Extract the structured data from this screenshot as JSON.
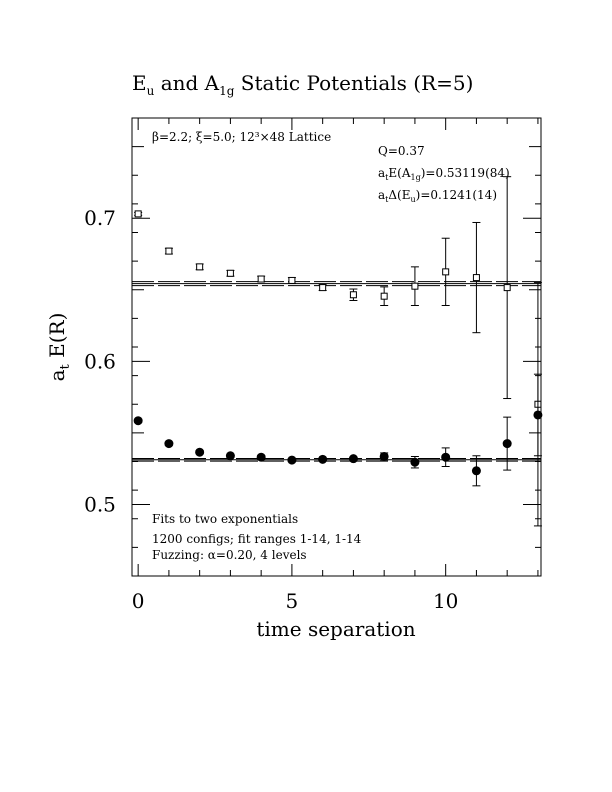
{
  "chart_data": {
    "type": "scatter",
    "title": {
      "pre": "E",
      "pre_sub": "u",
      "mid": " and A",
      "mid_sub": "1g",
      "post": " Static Potentials (R=5)"
    },
    "xlabel": "time separation",
    "ylabel": {
      "pre": "a",
      "sub": "t",
      "post": " E(R)"
    },
    "xlim": [
      -0.2,
      13.1
    ],
    "ylim": [
      0.45,
      0.77
    ],
    "x_ticks": [
      0,
      5,
      10
    ],
    "y_ticks": [
      0.5,
      0.6,
      0.7
    ],
    "x_tick_labels": [
      "0",
      "5",
      "10"
    ],
    "y_tick_labels": [
      "0.5",
      "0.6",
      "0.7"
    ],
    "grid": false,
    "series": [
      {
        "marker": "open-square",
        "points": [
          {
            "x": 0,
            "y": 0.703,
            "err": 0.001
          },
          {
            "x": 1,
            "y": 0.677,
            "err": 0.002
          },
          {
            "x": 2,
            "y": 0.666,
            "err": 0.002
          },
          {
            "x": 3,
            "y": 0.6615,
            "err": 0.002
          },
          {
            "x": 4,
            "y": 0.6575,
            "err": 0.002
          },
          {
            "x": 5,
            "y": 0.6565,
            "err": 0.002
          },
          {
            "x": 6,
            "y": 0.6515,
            "err": 0.002
          },
          {
            "x": 7,
            "y": 0.6465,
            "err": 0.004
          },
          {
            "x": 8,
            "y": 0.6455,
            "err": 0.0065
          },
          {
            "x": 9,
            "y": 0.6525,
            "err": 0.0135
          },
          {
            "x": 10,
            "y": 0.6625,
            "err": 0.0235
          },
          {
            "x": 11,
            "y": 0.6585,
            "err": 0.0385
          },
          {
            "x": 12,
            "y": 0.6515,
            "err": 0.0775
          },
          {
            "x": 13,
            "y": 0.57,
            "err": 0.085
          }
        ],
        "fit": {
          "center": 0.6543,
          "err": 0.0014,
          "x_from": -0.2,
          "x_to": 13.1
        }
      },
      {
        "marker": "filled-circle",
        "points": [
          {
            "x": 0,
            "y": 0.5585,
            "err": 0.001
          },
          {
            "x": 1,
            "y": 0.5425,
            "err": 0.001
          },
          {
            "x": 2,
            "y": 0.5365,
            "err": 0.001
          },
          {
            "x": 3,
            "y": 0.534,
            "err": 0.001
          },
          {
            "x": 4,
            "y": 0.533,
            "err": 0.001
          },
          {
            "x": 5,
            "y": 0.531,
            "err": 0.001
          },
          {
            "x": 6,
            "y": 0.5315,
            "err": 0.001
          },
          {
            "x": 7,
            "y": 0.532,
            "err": 0.001
          },
          {
            "x": 8,
            "y": 0.5335,
            "err": 0.0025
          },
          {
            "x": 9,
            "y": 0.5295,
            "err": 0.004
          },
          {
            "x": 10,
            "y": 0.533,
            "err": 0.0065
          },
          {
            "x": 11,
            "y": 0.5235,
            "err": 0.0105
          },
          {
            "x": 12,
            "y": 0.5425,
            "err": 0.0185
          },
          {
            "x": 13,
            "y": 0.5625,
            "err": 0.0285
          }
        ],
        "fit": {
          "center": 0.5312,
          "err": 0.0009,
          "x_from": -0.2,
          "x_to": 13.1
        }
      }
    ],
    "annotations": {
      "params": "β=2.2; ξ=5.0; 12³×48 Lattice",
      "q": "Q=0.37",
      "energy": {
        "pre": "a",
        "pre_sub": "t",
        "mid": "E(A",
        "mid_sub": "1g",
        "post": ")=0.53119(84)"
      },
      "splitting": {
        "pre": "a",
        "pre_sub": "t",
        "mid": "Δ(E",
        "mid_sub": "u",
        "post": ")=0.1241(14)"
      },
      "fit_note_1": "Fits to two exponentials",
      "fit_note_2": "1200 configs; fit ranges 1-14, 1-14",
      "fit_note_3": "Fuzzing: α=0.20, 4 levels"
    }
  }
}
